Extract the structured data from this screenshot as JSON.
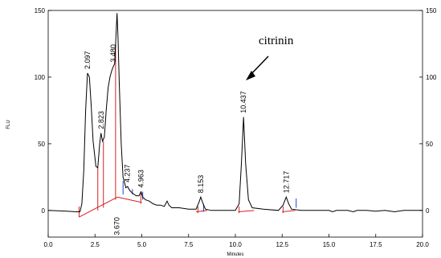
{
  "chart_data": {
    "type": "line",
    "xlabel": "Minutes",
    "ylabel": "FLU",
    "xlim": [
      0.0,
      20.0
    ],
    "ylim": [
      -20,
      150
    ],
    "x_ticks": [
      0.0,
      2.5,
      5.0,
      7.5,
      10.0,
      12.5,
      15.0,
      17.5,
      20.0
    ],
    "x_tick_labels": [
      "0.0",
      "2.5",
      "5.0",
      "7.5",
      "10.0",
      "12.5",
      "15.0",
      "17.5",
      "20.0"
    ],
    "y_ticks": [
      0,
      50,
      100,
      150
    ],
    "y_tick_labels": [
      "0",
      "50",
      "100",
      "150"
    ],
    "right_y_tick_labels": [
      "0",
      "50",
      "100",
      "150"
    ],
    "grid": false,
    "annotation": {
      "text": "citrinin",
      "points_to_peak": "10.437"
    },
    "peaks": [
      {
        "label": "2.097",
        "rt": 2.097,
        "height": 103
      },
      {
        "label": "2.823",
        "rt": 2.823,
        "height": 58
      },
      {
        "label": "3.480",
        "rt": 3.48,
        "height": 108
      },
      {
        "label": "3.670",
        "rt": 3.67,
        "height": 148
      },
      {
        "label": "4.237",
        "rt": 4.237,
        "height": 18
      },
      {
        "label": "4.963",
        "rt": 4.963,
        "height": 14
      },
      {
        "label": "8.153",
        "rt": 8.153,
        "height": 10
      },
      {
        "label": "10.437",
        "rt": 10.437,
        "height": 70
      },
      {
        "label": "12.717",
        "rt": 12.717,
        "height": 10
      }
    ],
    "series": [
      {
        "color": "#000000",
        "points": [
          [
            0.0,
            0
          ],
          [
            1.0,
            -0.5
          ],
          [
            1.5,
            -1
          ],
          [
            1.7,
            -1
          ],
          [
            1.8,
            5
          ],
          [
            1.9,
            30
          ],
          [
            2.0,
            75
          ],
          [
            2.1,
            103
          ],
          [
            2.2,
            100
          ],
          [
            2.3,
            78
          ],
          [
            2.4,
            52
          ],
          [
            2.55,
            33
          ],
          [
            2.65,
            32
          ],
          [
            2.75,
            50
          ],
          [
            2.82,
            58
          ],
          [
            2.9,
            52
          ],
          [
            3.0,
            55
          ],
          [
            3.1,
            75
          ],
          [
            3.2,
            92
          ],
          [
            3.3,
            100
          ],
          [
            3.4,
            105
          ],
          [
            3.48,
            108
          ],
          [
            3.55,
            110
          ],
          [
            3.62,
            130
          ],
          [
            3.68,
            148
          ],
          [
            3.73,
            130
          ],
          [
            3.8,
            95
          ],
          [
            3.9,
            50
          ],
          [
            4.0,
            25
          ],
          [
            4.15,
            17
          ],
          [
            4.24,
            18
          ],
          [
            4.35,
            15
          ],
          [
            4.5,
            13
          ],
          [
            4.7,
            11
          ],
          [
            4.85,
            11
          ],
          [
            4.96,
            14
          ],
          [
            5.05,
            10
          ],
          [
            5.2,
            8
          ],
          [
            5.4,
            7
          ],
          [
            5.6,
            5
          ],
          [
            5.8,
            4
          ],
          [
            6.0,
            4
          ],
          [
            6.2,
            3
          ],
          [
            6.35,
            7
          ],
          [
            6.45,
            4
          ],
          [
            6.6,
            2
          ],
          [
            7.0,
            2
          ],
          [
            7.5,
            1
          ],
          [
            7.9,
            1
          ],
          [
            8.05,
            6
          ],
          [
            8.15,
            10
          ],
          [
            8.25,
            6
          ],
          [
            8.4,
            1
          ],
          [
            8.7,
            0
          ],
          [
            9.5,
            0
          ],
          [
            10.0,
            0
          ],
          [
            10.2,
            5
          ],
          [
            10.32,
            35
          ],
          [
            10.437,
            70
          ],
          [
            10.55,
            35
          ],
          [
            10.7,
            8
          ],
          [
            10.9,
            2
          ],
          [
            11.5,
            1
          ],
          [
            12.3,
            0
          ],
          [
            12.55,
            4
          ],
          [
            12.717,
            10
          ],
          [
            12.85,
            5
          ],
          [
            13.0,
            1
          ],
          [
            13.5,
            0
          ],
          [
            15.0,
            0
          ],
          [
            15.2,
            -1
          ],
          [
            15.4,
            0
          ],
          [
            16.0,
            0
          ],
          [
            16.3,
            -1
          ],
          [
            16.5,
            0
          ],
          [
            17.0,
            0
          ],
          [
            17.5,
            -0.5
          ],
          [
            18.0,
            0
          ],
          [
            18.5,
            -1
          ],
          [
            19.0,
            0
          ],
          [
            20.0,
            0
          ]
        ]
      }
    ],
    "baselines": [
      {
        "color": "#d62020",
        "segments": [
          [
            [
              1.65,
              -5
            ],
            [
              3.7,
              10
            ]
          ],
          [
            [
              3.7,
              10
            ],
            [
              5.0,
              6
            ]
          ],
          [
            [
              7.9,
              -1
            ],
            [
              8.5,
              0
            ]
          ],
          [
            [
              10.15,
              -1
            ],
            [
              11.0,
              0
            ]
          ],
          [
            [
              12.5,
              -1
            ],
            [
              13.2,
              0
            ]
          ]
        ]
      },
      {
        "color": "#d62020",
        "drops": [
          [
            1.65,
            -5,
            3
          ],
          [
            2.65,
            0,
            32
          ],
          [
            2.95,
            2,
            52
          ],
          [
            3.6,
            8,
            125
          ],
          [
            4.95,
            5,
            13
          ],
          [
            8.0,
            -2,
            3
          ],
          [
            10.2,
            -2,
            3
          ],
          [
            12.55,
            -2,
            3
          ]
        ]
      },
      {
        "color": "#2040d0",
        "drops": [
          [
            4.0,
            12,
            22
          ],
          [
            4.5,
            12,
            16
          ],
          [
            5.05,
            8,
            14
          ],
          [
            8.3,
            -1,
            5
          ],
          [
            13.25,
            2,
            9
          ]
        ]
      }
    ]
  }
}
